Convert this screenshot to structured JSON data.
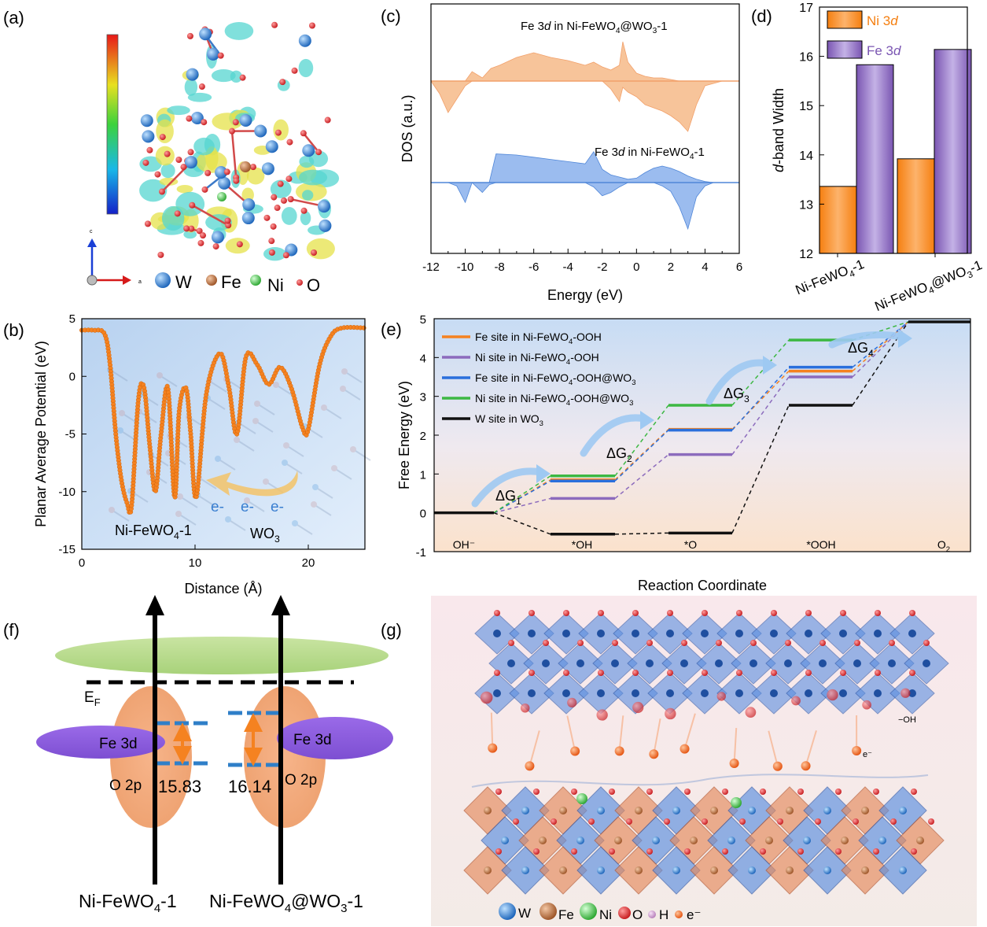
{
  "panels": {
    "a": {
      "label": "(a)",
      "legend": [
        "W",
        "Fe",
        "Ni",
        "O"
      ],
      "axis_c": "c",
      "axis_a": "a",
      "colors": {
        "W": "#2a7fd4",
        "Fe": "#b86a3c",
        "Ni": "#6cd46c",
        "O": "#e02020"
      }
    },
    "f": {
      "label": "(f)",
      "ef": "E",
      "ef_sub": "F",
      "fe3d_left": "Fe 3d",
      "fe3d_right": "Fe 3d",
      "o2p_left": "O 2p",
      "o2p_right": "O 2p",
      "value_left": "15.83",
      "value_right": "16.14",
      "name_left_pre": "Ni-FeWO",
      "name_left_sub": "4",
      "name_left_post": "-1",
      "name_right_pre": "Ni-FeWO",
      "name_right_sub1": "4",
      "name_right_mid": "@WO",
      "name_right_sub2": "3",
      "name_right_post": "-1"
    },
    "g": {
      "label": "(g)",
      "legend": [
        "W",
        "Fe",
        "Ni",
        "O",
        "H",
        "e⁻"
      ],
      "oh": "−OH",
      "e": "e⁻"
    }
  },
  "chart_data": [
    {
      "panel": "(b)",
      "type": "line",
      "xlabel": "Distance (Å)",
      "ylabel": "Planar Average Potential (eV)",
      "xlim": [
        0,
        25
      ],
      "ylim": [
        -15,
        5
      ],
      "xticks": [
        0,
        10,
        20
      ],
      "yticks": [
        5,
        0,
        -5,
        -10,
        -15
      ],
      "x": [
        0,
        1,
        2,
        2.5,
        3,
        3.5,
        4,
        4.4,
        5,
        5.5,
        6,
        6.5,
        7,
        7.6,
        8.2,
        8.6,
        9.2,
        9.6,
        10.1,
        11,
        12.2,
        13,
        13.7,
        14.5,
        15.5,
        16.5,
        17.5,
        18.5,
        19.5,
        20,
        21,
        22,
        23,
        25
      ],
      "y": [
        4,
        4,
        3.7,
        1,
        -5,
        -9,
        -11,
        -11.2,
        -2,
        -1,
        -6,
        -10,
        -5,
        -1,
        -10.5,
        -3,
        -1,
        -4.8,
        -10.5,
        -1.5,
        2,
        -1,
        -5,
        1.7,
        1,
        -0.7,
        0.8,
        -1,
        -4.5,
        -4.6,
        1,
        3.5,
        4.2,
        4.2
      ],
      "annotations": [
        "Ni-FeWO4-1",
        "WO3",
        "e-",
        "e-",
        "e-"
      ],
      "ann_parts": {
        "left_pre": "Ni-FeWO",
        "left_sub": "4",
        "left_post": "-1",
        "right_pre": "WO",
        "right_sub": "3",
        "electron": "e-"
      },
      "color": "#f58220"
    },
    {
      "panel": "(c)",
      "type": "area",
      "xlabel": "Energy (eV)",
      "ylabel": "DOS (a.u.)",
      "xlim": [
        -12,
        6
      ],
      "xticks": [
        -12,
        -10,
        -8,
        -6,
        -4,
        -2,
        0,
        2,
        4,
        6
      ],
      "series": [
        {
          "name": "Fe 3d in Ni-FeWO4@WO3-1",
          "name_parts": {
            "pre": "Fe 3",
            "it": "d",
            "mid": " in Ni-FeWO",
            "sub1": "4",
            "mid2": "@WO",
            "sub2": "3",
            "post": "-1"
          },
          "color": "#f7c49a",
          "x": [
            -12,
            -11.5,
            -11,
            -10,
            -9.6,
            -9,
            -8.5,
            -8,
            -7,
            -6,
            -5,
            -4,
            -3,
            -2.5,
            -2,
            -1.5,
            -1,
            -0.8,
            -0.5,
            0,
            0.5,
            1,
            1.5,
            2,
            2.5,
            3,
            3.5,
            4,
            5,
            6
          ],
          "up": [
            0,
            0,
            0,
            0,
            0.6,
            0.2,
            0.8,
            1,
            1.5,
            1.8,
            1.5,
            1.3,
            1.0,
            1.2,
            0.9,
            0.7,
            1.0,
            2.5,
            1.2,
            0.5,
            0.3,
            0.2,
            0.2,
            0.1,
            0,
            0,
            0,
            0,
            0,
            0
          ],
          "down": [
            0,
            -0.8,
            -2,
            -0.3,
            0,
            0,
            0,
            0,
            0,
            0,
            0,
            0,
            0,
            0,
            0,
            -0.5,
            -1.3,
            -0.4,
            -0.7,
            -1.0,
            -1.5,
            -1.7,
            -1.9,
            -2.2,
            -2.6,
            -3.2,
            -1.5,
            -0.3,
            0,
            0
          ]
        },
        {
          "name": "Fe 3d in Ni-FeWO4-1",
          "name_parts": {
            "pre": "Fe 3",
            "it": "d",
            "mid": " in Ni-FeWO",
            "sub1": "4",
            "post": "-1"
          },
          "color": "#9bbcef",
          "x": [
            -12,
            -11,
            -10.5,
            -10,
            -9.6,
            -9,
            -8.6,
            -8.2,
            -7,
            -6,
            -5,
            -4,
            -3,
            -2.5,
            -2,
            -1.5,
            -1,
            -0.5,
            0,
            0.5,
            1,
            1.5,
            2,
            2.5,
            3,
            3.5,
            4,
            4.5,
            5,
            6
          ],
          "up": [
            0,
            0,
            0,
            0,
            0,
            0,
            0,
            2.6,
            2.5,
            2.3,
            2.1,
            1.9,
            1.7,
            2.8,
            1.2,
            0.7,
            0.5,
            0.3,
            0.4,
            0.9,
            1.3,
            1.5,
            1.3,
            1.0,
            0.6,
            0.3,
            0.1,
            0,
            0,
            0
          ],
          "down": [
            0,
            0,
            -0.3,
            -1.8,
            0,
            -0.9,
            -0.2,
            0,
            0,
            0,
            0,
            0,
            0,
            -0.4,
            -1.2,
            -0.9,
            -0.4,
            0,
            0,
            0,
            0,
            -0.3,
            -0.8,
            -2.2,
            -4.2,
            -1.3,
            -0.3,
            0,
            0,
            0
          ]
        }
      ]
    },
    {
      "panel": "(d)",
      "type": "bar",
      "ylabel": "d-band Width",
      "ylabel_parts": {
        "it": "d",
        "post": "-band Width"
      },
      "ylim": [
        12,
        17
      ],
      "yticks": [
        12,
        13,
        14,
        15,
        16,
        17
      ],
      "categories": [
        "Ni-FeWO4-1",
        "Ni-FeWO4@WO3-1"
      ],
      "cat_parts": [
        {
          "pre": "Ni-FeWO",
          "sub": "4",
          "post": "-1"
        },
        {
          "pre": "Ni-FeWO",
          "sub": "4",
          "mid": "@WO",
          "sub2": "3",
          "post": "-1"
        }
      ],
      "series": [
        {
          "name": "Ni 3d",
          "name_parts": {
            "pre": "Ni 3",
            "it": "d"
          },
          "values": [
            13.36,
            13.92
          ],
          "color": "#fb9535"
        },
        {
          "name": "Fe 3d",
          "name_parts": {
            "pre": "Fe 3",
            "it": "d"
          },
          "values": [
            15.83,
            16.14
          ],
          "color": "#8c6bbd"
        }
      ]
    },
    {
      "panel": "(e)",
      "type": "line",
      "xlabel": "Reaction Coordinate",
      "ylabel": "Free Energy (eV)",
      "ylim": [
        -1,
        5
      ],
      "yticks": [
        -1,
        0,
        1,
        2,
        3,
        4,
        5
      ],
      "steps": [
        "OH⁻",
        "*OH",
        "*O",
        "*OOH",
        "O2"
      ],
      "step_parts": {
        "o2_pre": "O",
        "o2_sub": "2"
      },
      "deltas": [
        {
          "pre": "ΔG",
          "sub": "1"
        },
        {
          "pre": "ΔG",
          "sub": "2"
        },
        {
          "pre": "ΔG",
          "sub": "3"
        },
        {
          "pre": "ΔG",
          "sub": "4"
        }
      ],
      "series": [
        {
          "name": "Fe site in Ni-FeWO4-OOH",
          "parts": {
            "pre": "Fe site in Ni-FeWO",
            "sub": "4",
            "post": "-OOH"
          },
          "color": "#f58220",
          "values": [
            0,
            0.85,
            2.15,
            3.65,
            4.92
          ]
        },
        {
          "name": "Ni site in Ni-FeWO4-OOH",
          "parts": {
            "pre": "Ni site in Ni-FeWO",
            "sub": "4",
            "post": "-OOH"
          },
          "color": "#8c6bbd",
          "values": [
            0,
            0.37,
            1.5,
            3.5,
            4.92
          ]
        },
        {
          "name": "Fe site in Ni-FeWO4-OOH@WO3",
          "parts": {
            "pre": "Fe site in Ni-FeWO",
            "sub": "4",
            "post": "-OOH@WO",
            "sub2": "3"
          },
          "color": "#2a6fdc",
          "values": [
            0,
            0.82,
            2.13,
            3.75,
            4.92
          ]
        },
        {
          "name": "Ni site in Ni-FeWO4-OOH@WO3",
          "parts": {
            "pre": "Ni site in Ni-FeWO",
            "sub": "4",
            "post": "-OOH@WO",
            "sub2": "3"
          },
          "color": "#3db843",
          "values": [
            0,
            0.95,
            2.77,
            4.45,
            4.92
          ]
        },
        {
          "name": "W site in WO3",
          "parts": {
            "pre": "W site in WO",
            "sub": "3"
          },
          "color": "#111111",
          "values": [
            0,
            -0.55,
            -0.52,
            2.77,
            4.92
          ]
        }
      ]
    }
  ]
}
